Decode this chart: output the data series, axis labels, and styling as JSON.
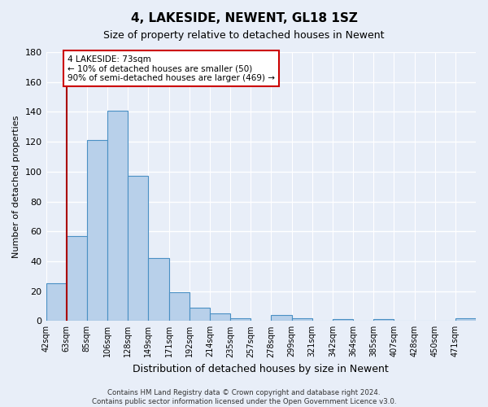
{
  "title": "4, LAKESIDE, NEWENT, GL18 1SZ",
  "subtitle": "Size of property relative to detached houses in Newent",
  "xlabel": "Distribution of detached houses by size in Newent",
  "ylabel": "Number of detached properties",
  "categories": [
    "42sqm",
    "63sqm",
    "85sqm",
    "106sqm",
    "128sqm",
    "149sqm",
    "171sqm",
    "192sqm",
    "214sqm",
    "235sqm",
    "257sqm",
    "278sqm",
    "299sqm",
    "321sqm",
    "342sqm",
    "364sqm",
    "385sqm",
    "407sqm",
    "428sqm",
    "450sqm",
    "471sqm"
  ],
  "values": [
    25,
    57,
    121,
    141,
    97,
    42,
    19,
    9,
    5,
    2,
    0,
    4,
    2,
    0,
    1,
    0,
    1,
    0,
    0,
    0,
    2
  ],
  "bar_color": "#b8d0ea",
  "bar_edge_color": "#4a90c4",
  "vline_x": 1.0,
  "vline_color": "#aa0000",
  "annotation_text": "4 LAKESIDE: 73sqm\n← 10% of detached houses are smaller (50)\n90% of semi-detached houses are larger (469) →",
  "annotation_box_color": "#ffffff",
  "annotation_box_edge": "#cc0000",
  "ylim": [
    0,
    180
  ],
  "yticks": [
    0,
    20,
    40,
    60,
    80,
    100,
    120,
    140,
    160,
    180
  ],
  "footer": "Contains HM Land Registry data © Crown copyright and database right 2024.\nContains public sector information licensed under the Open Government Licence v3.0.",
  "background_color": "#e8eef8"
}
